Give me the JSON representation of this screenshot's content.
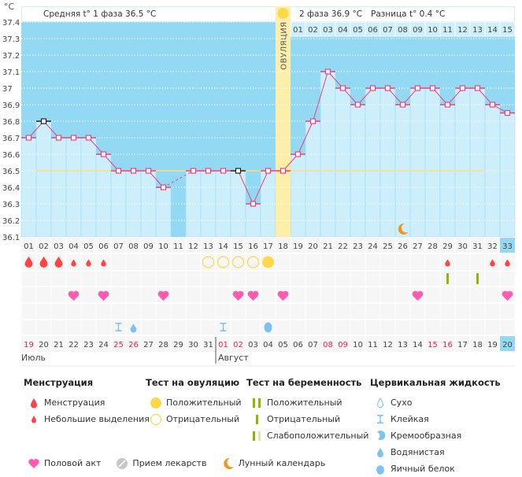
{
  "header": {
    "unit": "°C",
    "phase1_label": "Средняя t° 1 фаза 36.5 °C",
    "phase2_label": "2 фаза 36.9 °C",
    "difference_label": "Разница t° 0.4 °C",
    "ovulation_label": "ОВУЛЯЦИЯ"
  },
  "colors": {
    "background": "#93d9f3",
    "bar": "#cdeefb",
    "line": "#f0407a",
    "ovulation": "#fdeeaa",
    "coverline": "#f6e08a",
    "today": "#93d9f3"
  },
  "chart_data": {
    "type": "line",
    "ylim": [
      36.1,
      37.4
    ],
    "yticks": [
      "36.1",
      "36.2",
      "36.3",
      "36.4",
      "36.5",
      "36.6",
      "36.7",
      "36.8",
      "36.9",
      "37",
      "37.1",
      "37.2",
      "37.3",
      "37.4"
    ],
    "cycle_days": [
      "01",
      "02",
      "03",
      "04",
      "05",
      "06",
      "07",
      "08",
      "09",
      "10",
      "11",
      "12",
      "13",
      "14",
      "15",
      "16",
      "17",
      "18",
      "19",
      "20",
      "21",
      "22",
      "23",
      "24",
      "25",
      "26",
      "27",
      "28",
      "29",
      "30",
      "31",
      "32",
      "33"
    ],
    "phase2_days": [
      "01",
      "02",
      "03",
      "04",
      "05",
      "06",
      "07",
      "08",
      "09",
      "10",
      "11",
      "12",
      "13",
      "14",
      "15"
    ],
    "temperatures": [
      36.7,
      36.8,
      36.7,
      36.7,
      36.7,
      36.6,
      36.5,
      36.5,
      36.5,
      36.4,
      null,
      36.5,
      36.5,
      36.5,
      36.5,
      36.3,
      36.5,
      36.5,
      36.6,
      36.8,
      37.1,
      37.0,
      36.9,
      37.0,
      37.0,
      36.9,
      37.0,
      37.0,
      36.9,
      37.0,
      37.0,
      36.9,
      36.85
    ],
    "coverline": 36.5,
    "ovulation_day": 18,
    "today_day": 33,
    "grid": true
  },
  "dates": [
    "19",
    "20",
    "21",
    "22",
    "23",
    "24",
    "25",
    "26",
    "27",
    "28",
    "29",
    "30",
    "31",
    "01",
    "02",
    "03",
    "04",
    "05",
    "06",
    "07",
    "08",
    "09",
    "10",
    "11",
    "12",
    "13",
    "14",
    "15",
    "16",
    "17",
    "18",
    "19",
    "20"
  ],
  "weekend_days": [
    1,
    7,
    8,
    14,
    15,
    21,
    22,
    28,
    29
  ],
  "months": [
    {
      "label": "Июль",
      "start": 1
    },
    {
      "label": "Август",
      "start": 14
    }
  ],
  "marks": {
    "menstruation": [
      1,
      2,
      3
    ],
    "spotting": [
      4,
      5,
      6,
      29,
      32,
      33
    ],
    "ovulation_negative": [
      13,
      14,
      15,
      16
    ],
    "ovulation_positive": [
      17
    ],
    "pregnancy_negative": [
      29,
      31
    ],
    "intercourse": [
      4,
      6,
      10,
      15,
      16,
      18,
      27,
      33
    ],
    "cervical_sticky": [
      7,
      14
    ],
    "cervical_watery": [
      8
    ],
    "cervical_eggwhite": [
      17
    ],
    "moon": [
      26
    ]
  },
  "legend": {
    "menstruation": {
      "title": "Менструация",
      "items": [
        "Менструация",
        "Небольшие выделения"
      ]
    },
    "ovulation_test": {
      "title": "Тест на овуляцию",
      "items": [
        "Положительный",
        "Отрицательный"
      ]
    },
    "pregnancy_test": {
      "title": "Тест на беременность",
      "items": [
        "Положительный",
        "Отрицательный",
        "Слабоположительный"
      ]
    },
    "cervical": {
      "title": "Цервикальная жидкость",
      "items": [
        "Сухо",
        "Клейкая",
        "Кремообразная",
        "Водянистая",
        "Яичный белок"
      ]
    },
    "other": [
      "Половой акт",
      "Прием лекарств",
      "Лунный календарь"
    ]
  }
}
